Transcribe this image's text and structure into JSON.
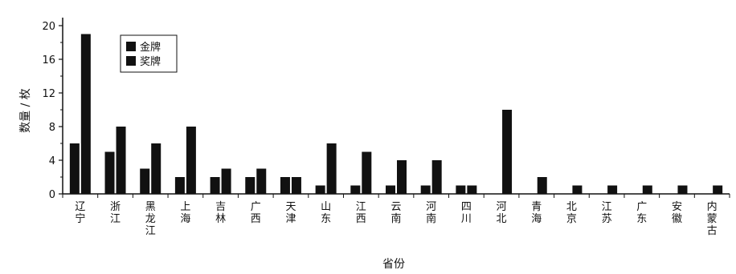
{
  "chart_data": {
    "type": "bar",
    "title": "",
    "xlabel": "省份",
    "ylabel": "数量 / 枚",
    "ylim": [
      0,
      20
    ],
    "yticks": [
      0,
      4,
      8,
      12,
      16,
      20
    ],
    "categories": [
      "辽宁",
      "浙江",
      "黑龙江",
      "上海",
      "吉林",
      "广西",
      "天津",
      "山东",
      "江西",
      "云南",
      "河南",
      "四川",
      "河北",
      "青海",
      "北京",
      "江苏",
      "广东",
      "安徽",
      "内蒙古"
    ],
    "series": [
      {
        "name": "金牌",
        "values": [
          6,
          5,
          3,
          2,
          2,
          2,
          2,
          1,
          1,
          1,
          1,
          1,
          0,
          0,
          0,
          0,
          0,
          0,
          0
        ]
      },
      {
        "name": "奖牌",
        "values": [
          19,
          8,
          6,
          8,
          3,
          3,
          2,
          6,
          5,
          4,
          4,
          1,
          10,
          2,
          1,
          1,
          1,
          1,
          1
        ]
      }
    ],
    "legend_position": "top-left",
    "grid": false,
    "colors": {
      "bar": "#111111",
      "axis": "#111111"
    }
  }
}
